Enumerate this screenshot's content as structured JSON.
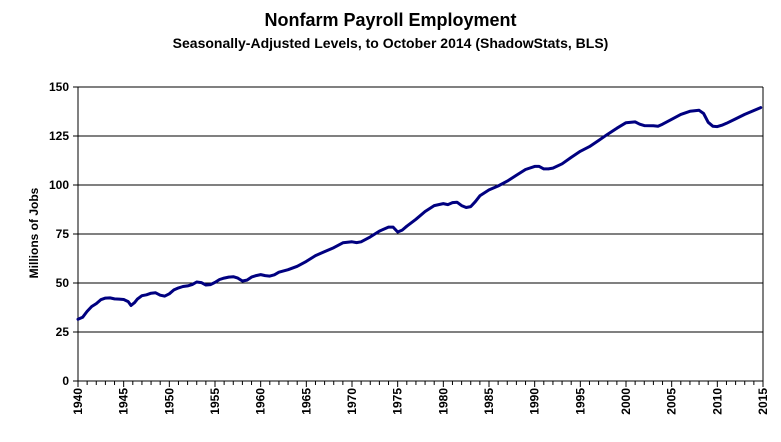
{
  "chart_data": {
    "type": "line",
    "title": "Nonfarm Payroll Employment",
    "subtitle": "Seasonally-Adjusted Levels, to October 2014 (ShadowStats, BLS)",
    "xlabel": "",
    "ylabel": "Millions  of Jobs",
    "xlim": [
      1940,
      2015
    ],
    "ylim": [
      0,
      150
    ],
    "x_ticks": [
      "1940",
      "1945",
      "1950",
      "1955",
      "1960",
      "1965",
      "1970",
      "1975",
      "1980",
      "1985",
      "1990",
      "1995",
      "2000",
      "2005",
      "2010",
      "2015"
    ],
    "y_ticks": [
      "0",
      "25",
      "50",
      "75",
      "100",
      "125",
      "150"
    ],
    "grid": "horizontal",
    "legend": "none",
    "series": [
      {
        "color": "#000080",
        "x": [
          1940.0,
          1940.5,
          1941.0,
          1941.5,
          1942.0,
          1942.5,
          1943.0,
          1943.5,
          1944.0,
          1944.5,
          1945.0,
          1945.5,
          1945.8,
          1946.2,
          1946.5,
          1947.0,
          1947.5,
          1948.0,
          1948.5,
          1949.0,
          1949.5,
          1950.0,
          1950.5,
          1951.0,
          1951.5,
          1952.0,
          1952.5,
          1953.0,
          1953.5,
          1954.0,
          1954.5,
          1955.0,
          1955.5,
          1956.0,
          1956.5,
          1957.0,
          1957.5,
          1958.0,
          1958.5,
          1959.0,
          1959.5,
          1960.0,
          1960.5,
          1961.0,
          1961.5,
          1962.0,
          1963.0,
          1964.0,
          1965.0,
          1966.0,
          1967.0,
          1968.0,
          1969.0,
          1970.0,
          1970.5,
          1971.0,
          1972.0,
          1973.0,
          1974.0,
          1974.5,
          1975.0,
          1975.5,
          1976.0,
          1977.0,
          1978.0,
          1979.0,
          1980.0,
          1980.5,
          1981.0,
          1981.5,
          1982.0,
          1982.5,
          1983.0,
          1983.5,
          1984.0,
          1985.0,
          1986.0,
          1987.0,
          1988.0,
          1989.0,
          1990.0,
          1990.5,
          1991.0,
          1991.5,
          1992.0,
          1993.0,
          1994.0,
          1995.0,
          1996.0,
          1997.0,
          1998.0,
          1999.0,
          2000.0,
          2001.0,
          2001.5,
          2002.0,
          2003.0,
          2003.5,
          2004.0,
          2005.0,
          2006.0,
          2007.0,
          2008.0,
          2008.5,
          2009.0,
          2009.5,
          2010.0,
          2010.5,
          2011.0,
          2012.0,
          2013.0,
          2014.0,
          2014.75
        ],
        "values": [
          31.5,
          32.5,
          35.5,
          38.0,
          39.5,
          41.5,
          42.3,
          42.4,
          41.9,
          41.8,
          41.6,
          40.5,
          38.5,
          40.0,
          41.8,
          43.5,
          44.0,
          44.8,
          45.0,
          43.8,
          43.3,
          44.5,
          46.5,
          47.5,
          48.2,
          48.5,
          49.2,
          50.5,
          50.2,
          49.0,
          49.2,
          50.3,
          51.8,
          52.5,
          53.0,
          53.2,
          52.5,
          51.0,
          51.5,
          53.0,
          53.8,
          54.3,
          53.8,
          53.5,
          54.2,
          55.5,
          56.8,
          58.5,
          61.0,
          64.0,
          66.0,
          68.0,
          70.5,
          71.0,
          70.6,
          71.0,
          73.5,
          76.5,
          78.5,
          78.5,
          76.0,
          77.0,
          79.0,
          82.5,
          86.5,
          89.5,
          90.5,
          90.0,
          91.0,
          91.2,
          89.5,
          88.5,
          89.0,
          91.5,
          94.5,
          97.5,
          99.5,
          102.0,
          105.0,
          107.9,
          109.5,
          109.5,
          108.2,
          108.2,
          108.6,
          110.8,
          114.1,
          117.2,
          119.6,
          122.7,
          125.9,
          129.0,
          131.8,
          132.2,
          131.0,
          130.3,
          130.2,
          130.0,
          131.0,
          133.5,
          136.0,
          137.6,
          138.1,
          136.5,
          132.0,
          130.0,
          129.8,
          130.5,
          131.5,
          133.7,
          136.0,
          138.0,
          139.5
        ]
      }
    ]
  }
}
